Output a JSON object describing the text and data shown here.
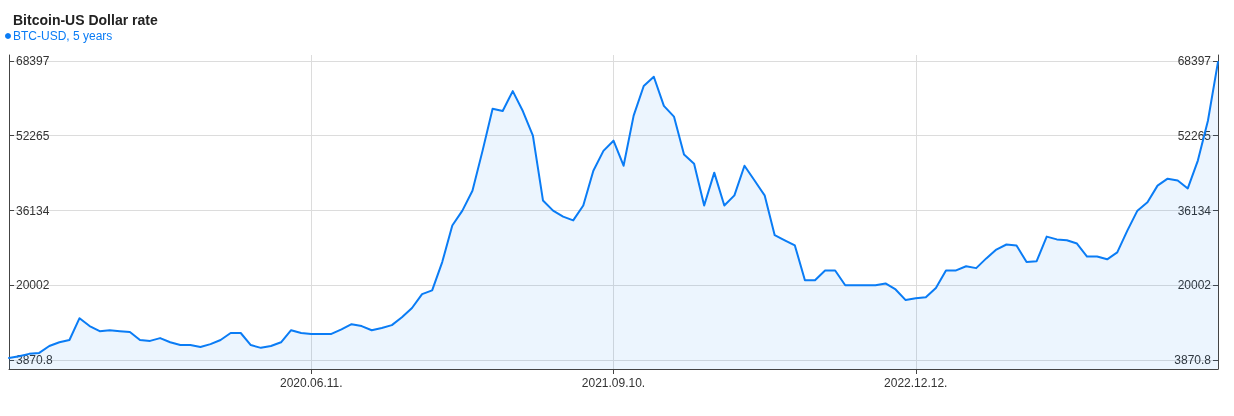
{
  "chart_data": {
    "type": "area",
    "title": "Bitcoin-US Dollar rate",
    "categories": [
      null,
      null,
      null,
      null,
      null,
      null,
      null,
      null,
      null,
      null,
      null,
      null,
      null,
      null,
      null,
      null,
      null,
      null,
      null,
      null,
      null,
      null,
      null,
      null,
      null,
      null,
      null,
      null,
      null,
      null,
      "2020.06.11.",
      null,
      null,
      null,
      null,
      null,
      null,
      null,
      null,
      null,
      null,
      null,
      null,
      null,
      null,
      null,
      null,
      null,
      null,
      null,
      null,
      null,
      null,
      null,
      null,
      null,
      null,
      null,
      null,
      null,
      "2021.09.10.",
      null,
      null,
      null,
      null,
      null,
      null,
      null,
      null,
      null,
      null,
      null,
      null,
      null,
      null,
      null,
      null,
      null,
      null,
      null,
      null,
      null,
      null,
      null,
      null,
      null,
      null,
      null,
      null,
      null,
      "2022.12.12.",
      null,
      null,
      null,
      null,
      null,
      null,
      null,
      null,
      null,
      null,
      null,
      null,
      null,
      null,
      null,
      null,
      null,
      null,
      null,
      null,
      null,
      null,
      null,
      null,
      null,
      null,
      null,
      null,
      null,
      null
    ],
    "series": [
      {
        "name": "BTC-USD, 5 years",
        "color": "#0a7cf5",
        "values": [
          4300,
          4700,
          5200,
          5400,
          6900,
          7700,
          8200,
          12900,
          11200,
          10100,
          10300,
          10100,
          9900,
          8200,
          8000,
          8600,
          7700,
          7100,
          7100,
          6700,
          7300,
          8200,
          9700,
          9700,
          7100,
          6500,
          6900,
          7700,
          10300,
          9700,
          9500,
          9500,
          9500,
          10500,
          11600,
          11200,
          10300,
          10800,
          11400,
          13100,
          15100,
          18100,
          18900,
          25000,
          32900,
          36100,
          40400,
          49000,
          58100,
          57600,
          61900,
          57600,
          52300,
          38300,
          36100,
          34800,
          34000,
          37200,
          44700,
          49000,
          51200,
          45800,
          56600,
          63000,
          65000,
          58700,
          56400,
          48200,
          46200,
          37200,
          44300,
          37200,
          39400,
          45800,
          42600,
          39400,
          30800,
          29700,
          28600,
          21100,
          21100,
          23200,
          23200,
          20000,
          20000,
          20000,
          20000,
          20400,
          19100,
          16800,
          17200,
          17400,
          19400,
          23200,
          23200,
          24100,
          23700,
          25800,
          27700,
          28800,
          28600,
          25000,
          25200,
          30500,
          29900,
          29700,
          29000,
          26200,
          26200,
          25600,
          27100,
          31800,
          36100,
          37900,
          41500,
          43000,
          42600,
          40900,
          46900,
          55500,
          68200
        ]
      }
    ],
    "ylim": [
      1935,
      69687
    ],
    "yticks": [
      3870.8,
      20002,
      36134,
      52265,
      68397
    ],
    "y2lim": [
      1935,
      69687
    ],
    "y2ticks": [
      3870.8,
      20002,
      36134,
      52265,
      68397
    ],
    "grid": true,
    "legend": "top left",
    "marker": "none",
    "line_style": "solid"
  }
}
